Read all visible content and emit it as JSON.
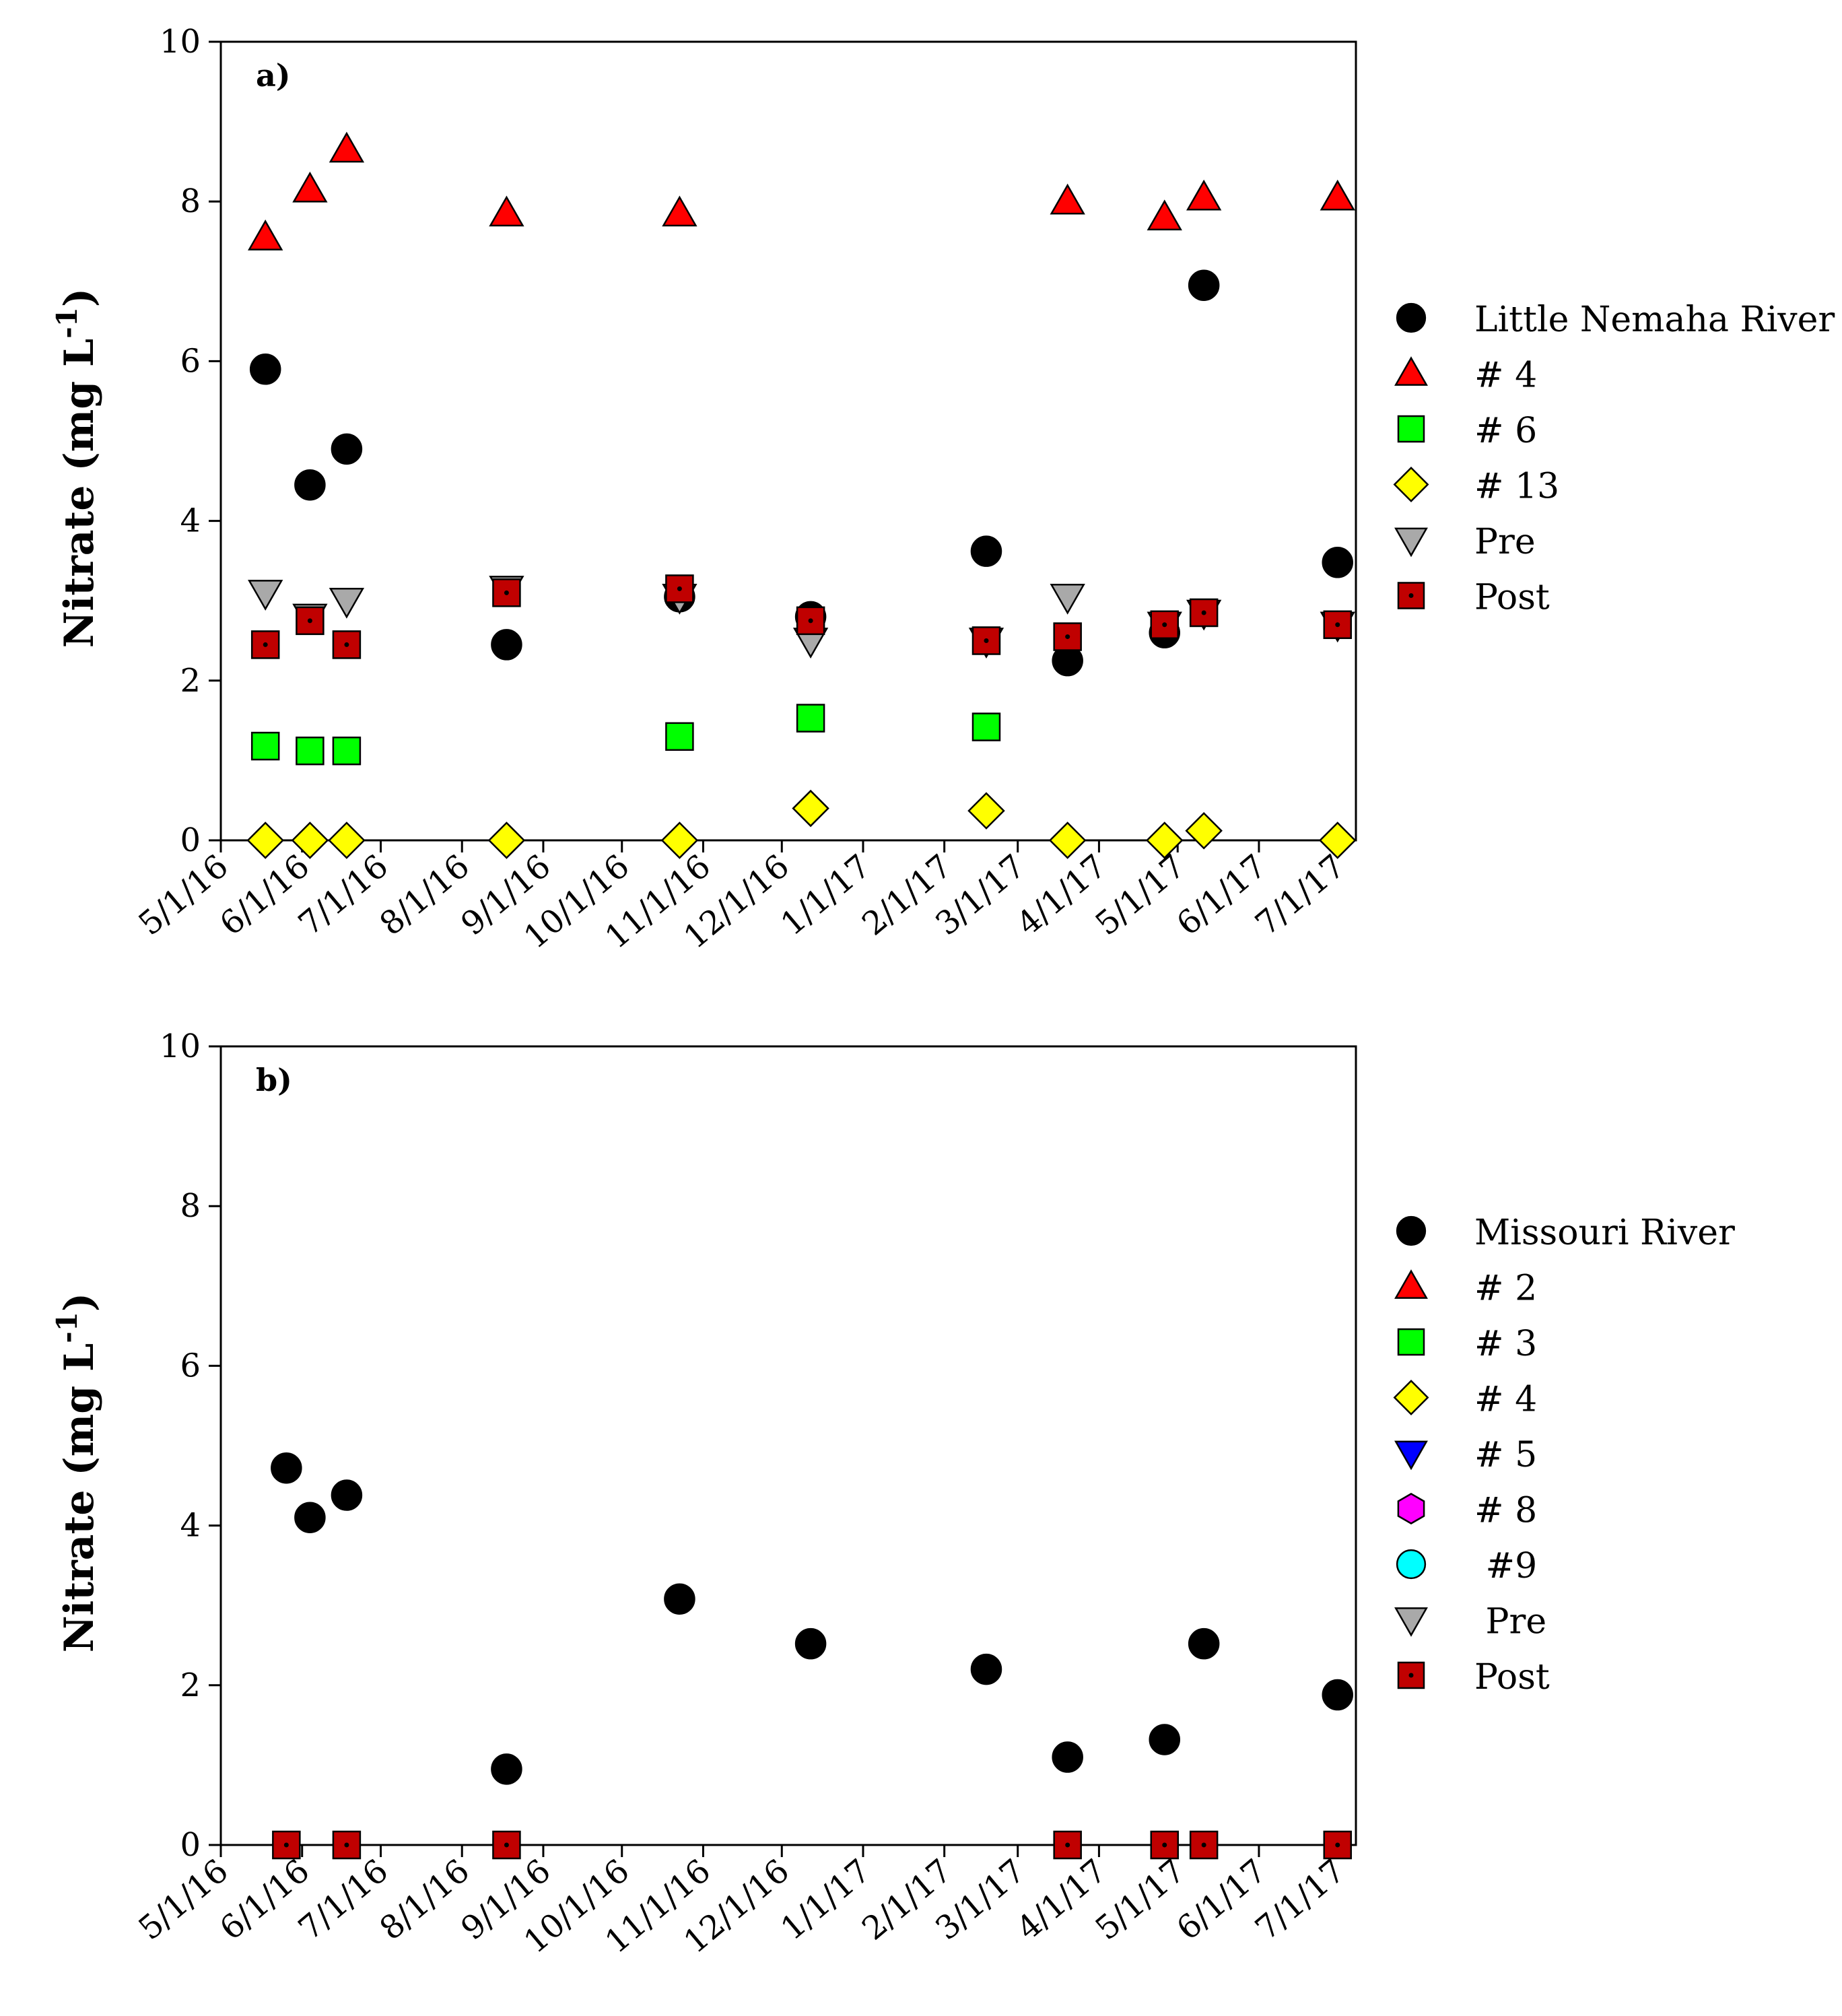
{
  "chart_data": [
    {
      "type": "scatter",
      "panel_label": "a)",
      "ylabel": "Nitrate (mg L",
      "ylabel_exponent": "-1",
      "ylabel_close": ")",
      "ylim": [
        0,
        10
      ],
      "y_ticks": [
        "0",
        "2",
        "4",
        "6",
        "8",
        "10"
      ],
      "x_range": [
        "2016-05-01",
        "2017-07-08"
      ],
      "x_ticks": [
        "5/1/16",
        "6/1/16",
        "7/1/16",
        "8/1/16",
        "9/1/16",
        "10/1/16",
        "11/1/16",
        "12/1/16",
        "1/1/17",
        "2/1/17",
        "3/1/17",
        "4/1/17",
        "5/1/17",
        "6/1/17",
        "7/1/17"
      ],
      "legend_position": "right",
      "series": [
        {
          "name": "Little Nemaha River",
          "marker": "circle",
          "color": "#000000",
          "x": [
            "2016-05-18",
            "2016-06-04",
            "2016-06-18",
            "2016-08-18",
            "2016-10-23",
            "2016-12-12",
            "2017-02-17",
            "2017-03-20",
            "2017-04-26",
            "2017-05-11",
            "2017-07-01"
          ],
          "y": [
            5.9,
            4.45,
            4.9,
            2.45,
            3.05,
            2.8,
            3.62,
            2.25,
            2.6,
            6.95,
            3.48
          ]
        },
        {
          "name": "# 4",
          "marker": "triangle-up",
          "color": "#ff0000",
          "x": [
            "2016-05-18",
            "2016-06-04",
            "2016-06-18",
            "2016-08-18",
            "2016-10-23",
            "2017-03-20",
            "2017-04-26",
            "2017-05-11",
            "2017-07-01"
          ],
          "y": [
            7.55,
            8.15,
            8.65,
            7.85,
            7.85,
            8.0,
            7.8,
            8.05,
            8.05
          ]
        },
        {
          "name": "# 6",
          "marker": "square",
          "color": "#00ff00",
          "x": [
            "2016-05-18",
            "2016-06-04",
            "2016-06-18",
            "2016-10-23",
            "2016-12-12",
            "2017-02-17"
          ],
          "y": [
            1.18,
            1.12,
            1.12,
            1.3,
            1.53,
            1.42
          ]
        },
        {
          "name": "# 13",
          "marker": "diamond",
          "color": "#ffff00",
          "x": [
            "2016-05-18",
            "2016-06-04",
            "2016-06-18",
            "2016-08-18",
            "2016-10-23",
            "2016-12-12",
            "2017-02-17",
            "2017-03-20",
            "2017-04-26",
            "2017-05-11",
            "2017-07-01"
          ],
          "y": [
            0,
            0,
            0,
            0,
            0,
            0.4,
            0.37,
            0,
            0,
            0.12,
            0
          ]
        },
        {
          "name": "Pre",
          "marker": "triangle-down",
          "color": "#a9a9a9",
          "x": [
            "2016-05-18",
            "2016-06-04",
            "2016-06-18",
            "2016-08-18",
            "2016-10-23",
            "2016-12-12",
            "2017-02-17",
            "2017-03-20",
            "2017-04-26",
            "2017-05-11",
            "2017-07-01"
          ],
          "y": [
            3.1,
            2.8,
            3.0,
            3.15,
            3.05,
            2.5,
            2.5,
            3.05,
            2.7,
            2.85,
            2.7
          ]
        },
        {
          "name": "Post",
          "marker": "square-dot",
          "color": "#c00000",
          "x": [
            "2016-05-18",
            "2016-06-04",
            "2016-06-18",
            "2016-08-18",
            "2016-10-23",
            "2016-12-12",
            "2017-02-17",
            "2017-03-20",
            "2017-04-26",
            "2017-05-11",
            "2017-07-01"
          ],
          "y": [
            2.45,
            2.75,
            2.45,
            3.1,
            3.15,
            2.75,
            2.5,
            2.55,
            2.7,
            2.85,
            2.7
          ]
        }
      ]
    },
    {
      "type": "scatter",
      "panel_label": "b)",
      "ylabel": "Nitrate (mg L",
      "ylabel_exponent": "-1",
      "ylabel_close": ")",
      "ylim": [
        0,
        10
      ],
      "y_ticks": [
        "0",
        "2",
        "4",
        "6",
        "8",
        "10"
      ],
      "x_range": [
        "2016-05-01",
        "2017-07-08"
      ],
      "x_ticks": [
        "5/1/16",
        "6/1/16",
        "7/1/16",
        "8/1/16",
        "9/1/16",
        "10/1/16",
        "11/1/16",
        "12/1/16",
        "1/1/17",
        "2/1/17",
        "3/1/17",
        "4/1/17",
        "5/1/17",
        "6/1/17",
        "7/1/17"
      ],
      "legend_position": "right",
      "series": [
        {
          "name": "Missouri River",
          "marker": "circle",
          "color": "#000000",
          "x": [
            "2016-05-26",
            "2016-06-04",
            "2016-06-18",
            "2016-08-18",
            "2016-10-23",
            "2016-12-12",
            "2017-02-17",
            "2017-03-20",
            "2017-04-26",
            "2017-05-11",
            "2017-07-01"
          ],
          "y": [
            4.72,
            4.1,
            4.38,
            0.95,
            3.08,
            2.52,
            2.2,
            1.1,
            1.32,
            2.52,
            1.88
          ]
        },
        {
          "name": "# 2",
          "marker": "triangle-up",
          "color": "#ff0000",
          "x": [],
          "y": []
        },
        {
          "name": "# 3",
          "marker": "square",
          "color": "#00ff00",
          "x": [],
          "y": []
        },
        {
          "name": "# 4",
          "marker": "diamond",
          "color": "#ffff00",
          "x": [],
          "y": []
        },
        {
          "name": "# 5",
          "marker": "triangle-down",
          "color": "#0000ff",
          "x": [],
          "y": []
        },
        {
          "name": "# 8",
          "marker": "hexagon",
          "color": "#ff00ff",
          "x": [],
          "y": []
        },
        {
          "name": " #9",
          "marker": "circle",
          "color": "#00ffff",
          "x": [],
          "y": []
        },
        {
          "name": " Pre",
          "marker": "triangle-down",
          "color": "#a9a9a9",
          "x": [],
          "y": []
        },
        {
          "name": "Post",
          "marker": "square-dot",
          "color": "#c00000",
          "x": [
            "2016-05-26",
            "2016-06-18",
            "2016-08-18",
            "2017-03-20",
            "2017-04-26",
            "2017-05-11",
            "2017-07-01"
          ],
          "y": [
            0,
            0,
            0,
            0,
            0,
            0,
            0
          ]
        }
      ]
    }
  ]
}
